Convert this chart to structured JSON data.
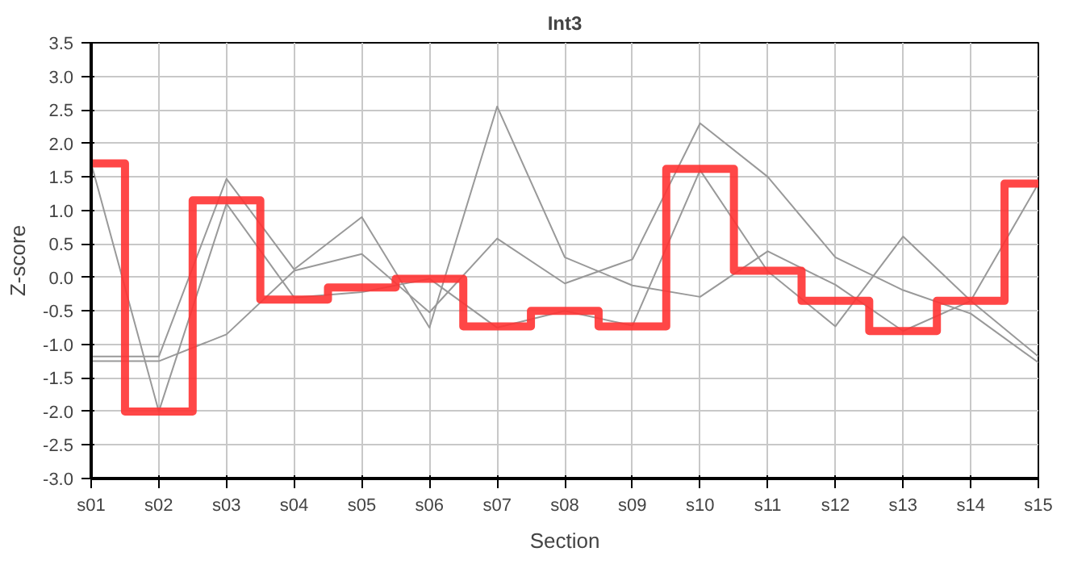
{
  "chart_data": {
    "type": "line",
    "title": "Int3",
    "xlabel": "Section",
    "ylabel": "Z-score",
    "categories": [
      "s01",
      "s02",
      "s03",
      "s04",
      "s05",
      "s06",
      "s07",
      "s08",
      "s09",
      "s10",
      "s11",
      "s12",
      "s13",
      "s14",
      "s15"
    ],
    "ylim": [
      -3.0,
      3.5
    ],
    "yticks": [
      {
        "value": -3,
        "label": "-3.0"
      },
      {
        "value": -2.5,
        "label": "-2.5"
      },
      {
        "value": -2,
        "label": "-2.0"
      },
      {
        "value": -1.5,
        "label": "-1.5"
      },
      {
        "value": -1,
        "label": "-1.0"
      },
      {
        "value": -0.5,
        "label": "-0.5"
      },
      {
        "value": 0,
        "label": "0.0"
      },
      {
        "value": 0.5,
        "label": "0.5"
      },
      {
        "value": 1,
        "label": "1.0"
      },
      {
        "value": 1.5,
        "label": "1.5"
      },
      {
        "value": 2,
        "label": "2.0"
      },
      {
        "value": 2.5,
        "label": "2.5"
      },
      {
        "value": 3,
        "label": "3.0"
      },
      {
        "value": 3.5,
        "label": "3.5"
      }
    ],
    "grid": true,
    "series": [
      {
        "color": "#999999",
        "values": [
          1.7,
          -2.0,
          1.1,
          -0.3,
          -0.22,
          -0.02,
          -0.75,
          -0.5,
          -0.72,
          1.6,
          0.09,
          -0.73,
          0.61,
          -0.35,
          1.4
        ]
      },
      {
        "color": "#999999",
        "values": [
          -1.18,
          -1.18,
          1.47,
          0.12,
          0.9,
          -0.75,
          2.55,
          0.3,
          -0.12,
          -0.29,
          0.39,
          -0.11,
          -0.8,
          -0.35,
          -1.18
        ]
      },
      {
        "color": "#999999",
        "values": [
          -1.25,
          -1.25,
          -0.85,
          0.1,
          0.35,
          -0.52,
          0.58,
          -0.09,
          0.27,
          2.3,
          1.5,
          0.3,
          -0.19,
          -0.54,
          -1.27
        ]
      },
      {
        "type": "step",
        "color": "#ff3333",
        "values": [
          1.7,
          -2.0,
          1.15,
          -0.33,
          -0.15,
          -0.02,
          -0.73,
          -0.5,
          -0.73,
          1.62,
          0.1,
          -0.35,
          -0.8,
          -0.35,
          1.4
        ]
      }
    ]
  }
}
